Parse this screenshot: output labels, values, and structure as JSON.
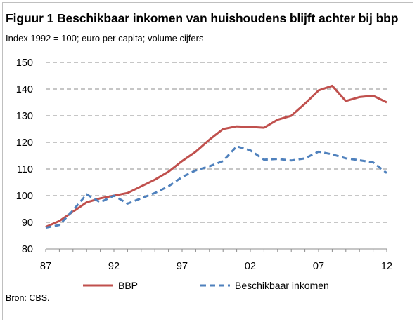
{
  "chart_data": {
    "type": "line",
    "title": "Figuur 1 Beschikbaar inkomen van huishoudens blijft achter bij bbp",
    "subtitle": "Index 1992 = 100; euro per capita; volume cijfers",
    "source": "Bron: CBS.",
    "xlabel": "",
    "ylabel": "",
    "xlim": [
      1987,
      2012
    ],
    "ylim": [
      80,
      150
    ],
    "y_ticks": [
      80,
      90,
      100,
      110,
      120,
      130,
      140,
      150
    ],
    "x_ticks": [
      1987,
      1992,
      1997,
      2002,
      2007,
      2012
    ],
    "x_tick_labels": [
      "87",
      "92",
      "97",
      "02",
      "07",
      "12"
    ],
    "grid": "horizontal dashed",
    "legend_position": "bottom",
    "series": [
      {
        "name": "BBP",
        "color": "#c0504d",
        "style": "solid",
        "x": [
          1987,
          1988,
          1989,
          1990,
          1991,
          1992,
          1993,
          1994,
          1995,
          1996,
          1997,
          1998,
          1999,
          2000,
          2001,
          2002,
          2003,
          2004,
          2005,
          2006,
          2007,
          2008,
          2009,
          2010,
          2011,
          2012
        ],
        "values": [
          88.3,
          90.5,
          94.0,
          97.5,
          99.0,
          100.0,
          101.0,
          103.5,
          106.0,
          109.0,
          113.0,
          116.5,
          121.0,
          125.0,
          126.0,
          125.8,
          125.5,
          128.5,
          130.0,
          134.5,
          139.5,
          141.2,
          135.5,
          137.0,
          137.5,
          135.0
        ]
      },
      {
        "name": "Beschikbaar inkomen",
        "color": "#4f81bd",
        "style": "dashed",
        "x": [
          1987,
          1988,
          1989,
          1990,
          1991,
          1992,
          1993,
          1994,
          1995,
          1996,
          1997,
          1998,
          1999,
          2000,
          2001,
          2002,
          2003,
          2004,
          2005,
          2006,
          2007,
          2008,
          2009,
          2010,
          2011,
          2012
        ],
        "values": [
          88.0,
          89.0,
          94.5,
          100.5,
          97.5,
          100.0,
          97.0,
          99.0,
          101.0,
          103.5,
          107.0,
          109.5,
          111.0,
          113.0,
          118.5,
          117.0,
          113.5,
          113.8,
          113.2,
          114.0,
          116.5,
          115.5,
          114.0,
          113.3,
          112.5,
          108.5
        ]
      }
    ]
  }
}
